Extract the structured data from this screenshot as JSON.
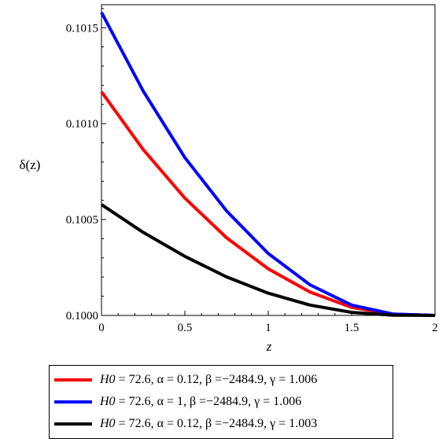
{
  "chart_data": {
    "type": "line",
    "xlabel": "z",
    "ylabel": "δ(z)",
    "xlim": [
      0,
      2
    ],
    "ylim": [
      0.1,
      0.10162
    ],
    "x_ticks": [
      0,
      0.5,
      1,
      1.5,
      2
    ],
    "x_tick_labels": [
      "0",
      "0.5",
      "1",
      "1.5",
      "2"
    ],
    "y_ticks": [
      0.1,
      0.1005,
      0.101,
      0.1015
    ],
    "y_tick_labels": [
      "0.1000",
      "0.1005",
      "0.1010",
      "0.1015"
    ],
    "grid": false,
    "legend_position": "bottom",
    "x": [
      0,
      0.25,
      0.5,
      0.75,
      1,
      1.25,
      1.5,
      1.75,
      2
    ],
    "series": [
      {
        "name": "H0 = 72.6, α = 0.12, β =−2484.9, γ = 1.006",
        "color": "#ff0000",
        "values": [
          0.101166,
          0.100865,
          0.100612,
          0.100405,
          0.100243,
          0.100122,
          0.100042,
          0.100006,
          0.1
        ]
      },
      {
        "name": "H0 = 72.6, α = 1, β =−2484.9, γ = 1.006",
        "color": "#0000ff",
        "values": [
          0.10158,
          0.10117,
          0.100823,
          0.100545,
          0.100323,
          0.10016,
          0.100054,
          0.100007,
          0.1
        ]
      },
      {
        "name": "H0 = 72.6, α = 0.12, β =−2484.9, γ = 1.003",
        "color": "#000000",
        "values": [
          0.100578,
          0.100433,
          0.100308,
          0.100201,
          0.100116,
          0.100054,
          0.100016,
          0.100001,
          0.1
        ]
      }
    ]
  },
  "legend": {
    "rows": [
      {
        "h0": "H0",
        "rest": " = 72.6, α = 0.12, β =−2484.9, γ = 1.006"
      },
      {
        "h0": "H0",
        "rest": " = 72.6, α = 1, β =−2484.9, γ = 1.006"
      },
      {
        "h0": "H0",
        "rest": " = 72.6, α = 0.12, β =−2484.9, γ = 1.003"
      }
    ]
  }
}
